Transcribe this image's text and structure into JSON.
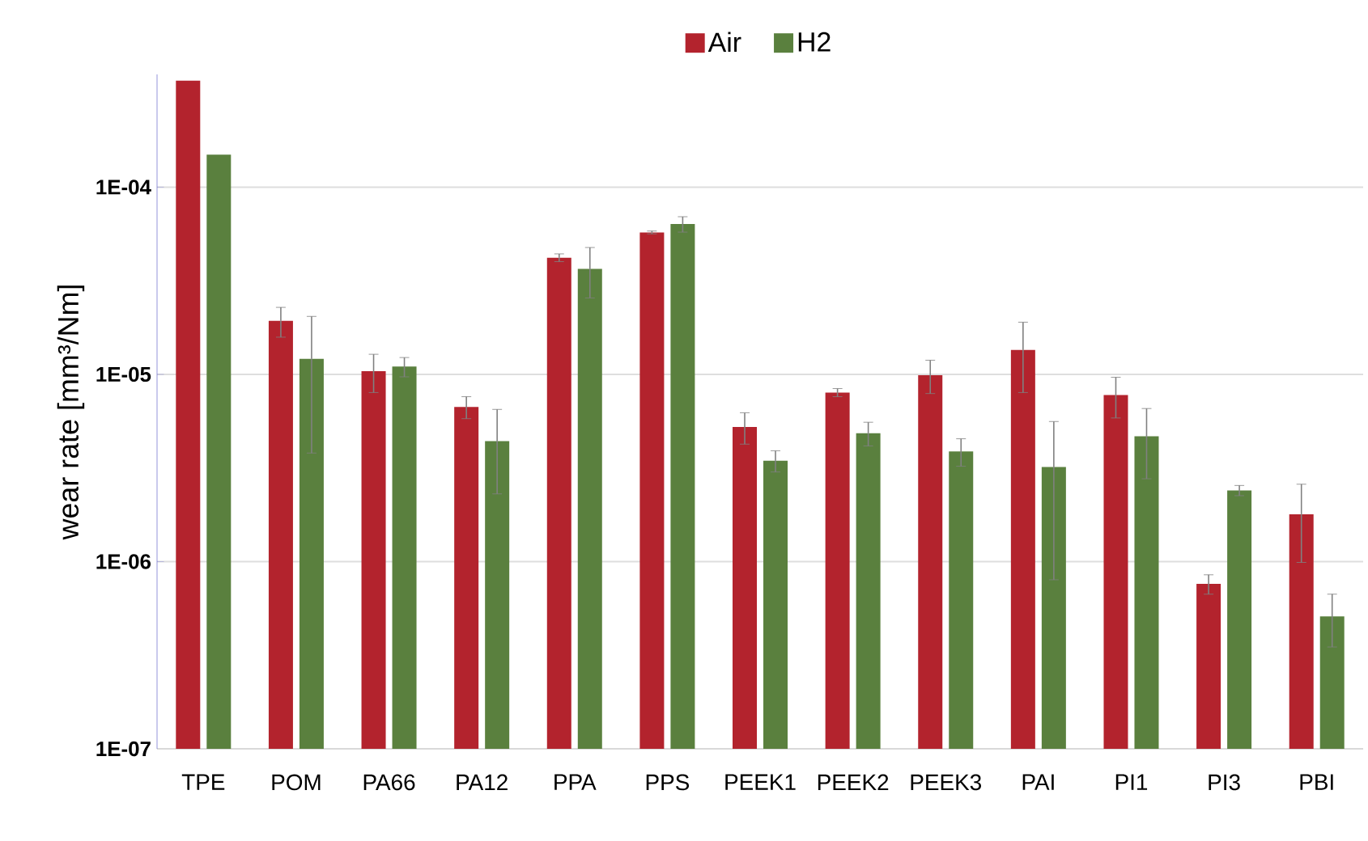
{
  "chart_data": {
    "type": "bar",
    "ylabel": "wear rate [mm³/Nm]",
    "log": "y",
    "grid": "y",
    "legend": "top",
    "categories": [
      "TPE",
      "POM",
      "PA66",
      "PA12",
      "PPA",
      "PPS",
      "PEEK1",
      "PEEK2",
      "PEEK3",
      "PAI",
      "PI1",
      "PI3",
      "PBI"
    ],
    "ylim": [
      1e-07,
      0.0004
    ],
    "yticks": [
      {
        "value": 1e-07,
        "label": "1E-07"
      },
      {
        "value": 1e-06,
        "label": "1E-06"
      },
      {
        "value": 1e-05,
        "label": "1E-05"
      },
      {
        "value": 0.0001,
        "label": "1E-04"
      }
    ],
    "series": [
      {
        "name": "Air",
        "color": "#b3232d",
        "values": [
          0.00037,
          1.93e-05,
          1.04e-05,
          6.7e-06,
          4.2e-05,
          5.73e-05,
          5.24e-06,
          8e-06,
          9.9e-06,
          1.35e-05,
          7.75e-06,
          7.6e-07,
          1.79e-06
        ],
        "errors": [
          null,
          3.5e-06,
          2.4e-06,
          9e-07,
          2e-06,
          1e-06,
          1e-06,
          4e-07,
          2e-06,
          5.5e-06,
          1.9e-06,
          9e-08,
          8e-07
        ]
      },
      {
        "name": "H2",
        "color": "#5a803e",
        "values": [
          0.000149,
          1.21e-05,
          1.1e-05,
          4.4e-06,
          3.66e-05,
          6.35e-05,
          3.46e-06,
          4.85e-06,
          3.88e-06,
          3.2e-06,
          4.67e-06,
          2.4e-06,
          5.1e-07
        ],
        "errors": [
          null,
          8.3e-06,
          1.3e-06,
          2.1e-06,
          1.1e-05,
          6e-06,
          4.5e-07,
          7e-07,
          6.5e-07,
          2.4e-06,
          1.9e-06,
          1.5e-07,
          1.6e-07
        ]
      }
    ]
  }
}
